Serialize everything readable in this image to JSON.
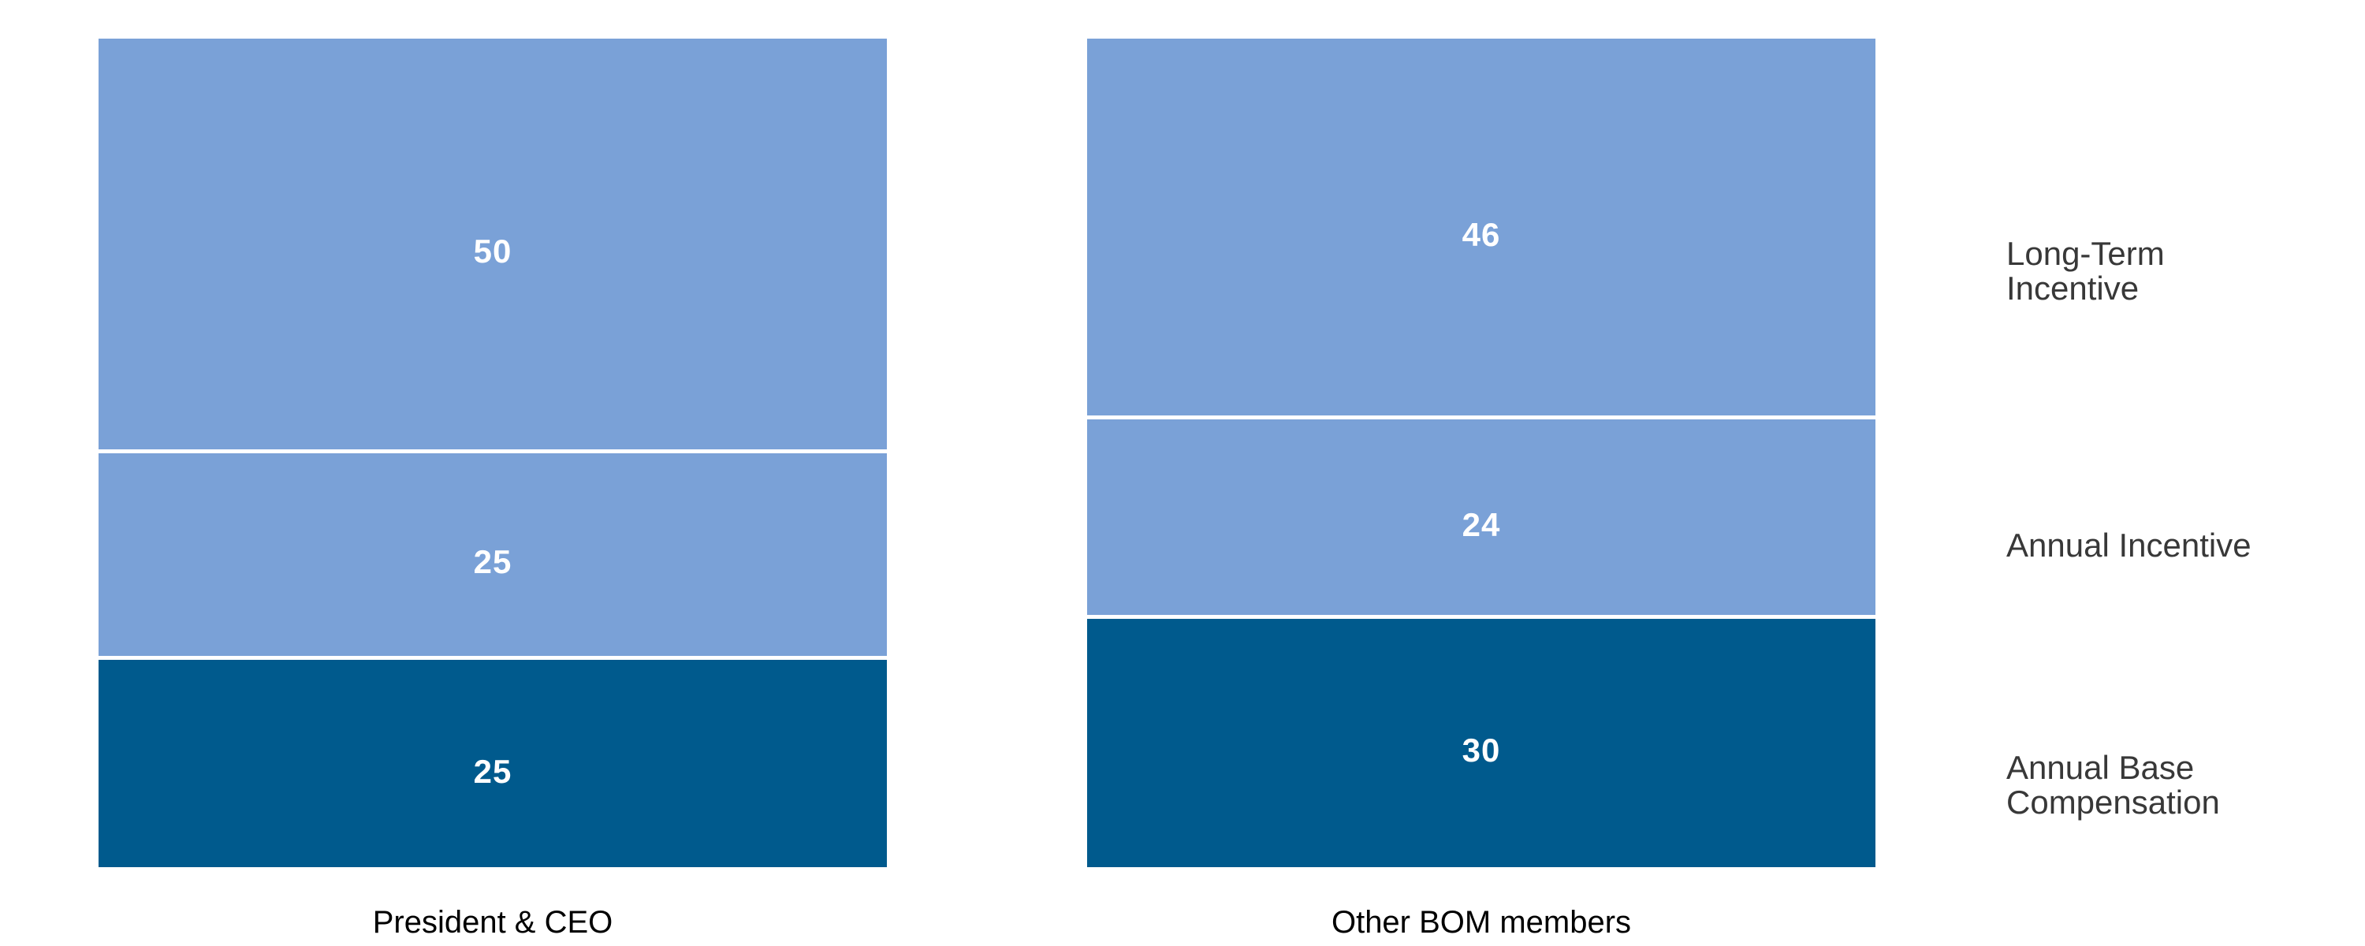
{
  "chart_data": {
    "type": "bar",
    "subtype": "stacked-columns-percent",
    "categories": [
      "President & CEO",
      "Other BOM members"
    ],
    "series_top_to_bottom": [
      {
        "name": "Long-Term Incentive",
        "values": [
          50,
          46
        ],
        "color": "#7aa1d7"
      },
      {
        "name": "Annual Incentive",
        "values": [
          25,
          24
        ],
        "color": "#7aa1d7"
      },
      {
        "name": "Annual Base Compensation",
        "values": [
          25,
          30
        ],
        "color": "#005a8d"
      }
    ],
    "right_labels": [
      "Long-Term Incentive",
      "Annual Incentive",
      "Annual Base Compensation"
    ],
    "title": "",
    "xlabel": "",
    "ylabel": "",
    "ylim": [
      0,
      100
    ],
    "grid": "off",
    "axis_lines": "off",
    "legend_position": "right-of-plot",
    "value_label_color": "#ffffff",
    "divider_color": "#ffffff",
    "category_label_color": "#000000",
    "right_label_color": "#383838"
  }
}
